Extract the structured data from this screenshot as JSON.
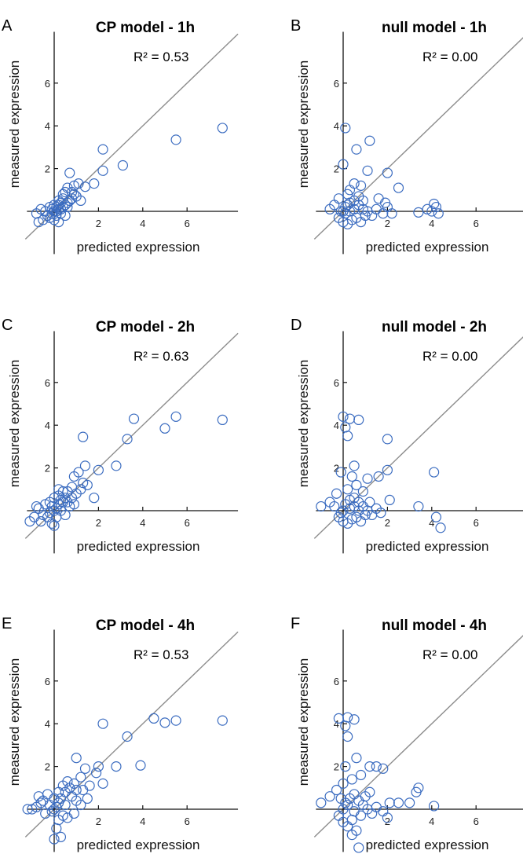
{
  "axis_labels": {
    "x": "predicted expression",
    "y": "measured expression"
  },
  "chart_data": [
    {
      "panel": "A",
      "type": "scatter",
      "title": "CP model - 1h",
      "annotation": "R² = 0.53",
      "xlabel": "predicted expression",
      "ylabel": "measured expression",
      "xticks": [
        2,
        4,
        6
      ],
      "yticks": [
        2,
        4,
        6
      ],
      "xlim": [
        -1.3,
        8.3
      ],
      "ylim": [
        -2.0,
        8.4
      ],
      "diagonal": true,
      "points": [
        [
          7.6,
          3.9
        ],
        [
          5.5,
          3.35
        ],
        [
          3.1,
          2.15
        ],
        [
          2.2,
          2.9
        ],
        [
          2.2,
          1.9
        ],
        [
          1.8,
          1.3
        ],
        [
          1.4,
          1.15
        ],
        [
          1.2,
          0.5
        ],
        [
          1.1,
          1.3
        ],
        [
          0.7,
          1.8
        ],
        [
          0.9,
          0.8
        ],
        [
          0.8,
          0.6
        ],
        [
          0.6,
          1.1
        ],
        [
          0.5,
          0.9
        ],
        [
          0.4,
          0.6
        ],
        [
          0.3,
          0.4
        ],
        [
          0.2,
          0.3
        ],
        [
          0.1,
          0.2
        ],
        [
          0.0,
          0.0
        ],
        [
          -0.1,
          0.1
        ],
        [
          -0.3,
          -0.2
        ],
        [
          -0.5,
          -0.4
        ],
        [
          -0.7,
          -0.5
        ],
        [
          -0.2,
          -0.3
        ],
        [
          0.1,
          -0.2
        ],
        [
          0.3,
          0.1
        ],
        [
          0.5,
          0.3
        ],
        [
          0.6,
          0.2
        ],
        [
          0.7,
          0.5
        ],
        [
          0.4,
          0.8
        ],
        [
          0.2,
          0.5
        ],
        [
          0.0,
          0.3
        ],
        [
          -0.1,
          -0.1
        ],
        [
          0.2,
          0.1
        ],
        [
          0.3,
          -0.1
        ],
        [
          0.8,
          0.9
        ],
        [
          1.0,
          0.7
        ],
        [
          0.9,
          1.2
        ],
        [
          0.6,
          0.4
        ],
        [
          0.4,
          0.2
        ],
        [
          0.1,
          0.0
        ],
        [
          -0.4,
          0.0
        ],
        [
          -0.8,
          -0.1
        ],
        [
          -0.6,
          0.1
        ],
        [
          -0.2,
          0.2
        ],
        [
          0.0,
          -0.4
        ],
        [
          0.2,
          -0.5
        ],
        [
          0.5,
          -0.2
        ]
      ]
    },
    {
      "panel": "B",
      "type": "scatter",
      "title": "null model - 1h",
      "annotation": "R² = 0.00",
      "xlabel": "predicted expression",
      "ylabel": "measured expression",
      "xticks": [
        2,
        4,
        6
      ],
      "yticks": [
        2,
        4,
        6
      ],
      "xlim": [
        -1.3,
        8.3
      ],
      "ylim": [
        -2.0,
        8.4
      ],
      "diagonal": true,
      "points": [
        [
          0.1,
          3.9
        ],
        [
          1.2,
          3.3
        ],
        [
          0.6,
          2.9
        ],
        [
          0.0,
          2.2
        ],
        [
          1.1,
          1.9
        ],
        [
          2.0,
          1.8
        ],
        [
          2.5,
          1.1
        ],
        [
          0.5,
          1.3
        ],
        [
          0.3,
          1.0
        ],
        [
          0.8,
          1.2
        ],
        [
          0.2,
          0.8
        ],
        [
          -0.2,
          0.6
        ],
        [
          -0.4,
          0.3
        ],
        [
          -0.6,
          0.1
        ],
        [
          0.0,
          0.0
        ],
        [
          0.1,
          0.2
        ],
        [
          0.3,
          0.4
        ],
        [
          0.5,
          0.5
        ],
        [
          0.7,
          0.3
        ],
        [
          0.9,
          0.1
        ],
        [
          1.1,
          0.0
        ],
        [
          1.3,
          -0.2
        ],
        [
          1.5,
          0.1
        ],
        [
          1.8,
          -0.1
        ],
        [
          2.0,
          0.2
        ],
        [
          2.2,
          -0.1
        ],
        [
          0.4,
          -0.4
        ],
        [
          0.2,
          -0.6
        ],
        [
          0.0,
          -0.5
        ],
        [
          -0.2,
          -0.3
        ],
        [
          0.6,
          -0.3
        ],
        [
          0.8,
          -0.5
        ],
        [
          1.0,
          -0.2
        ],
        [
          0.3,
          0.0
        ],
        [
          0.5,
          0.1
        ],
        [
          0.7,
          0.7
        ],
        [
          0.9,
          0.5
        ],
        [
          0.1,
          -0.1
        ],
        [
          -0.1,
          0.0
        ],
        [
          0.2,
          0.3
        ],
        [
          3.8,
          0.1
        ],
        [
          4.1,
          0.35
        ],
        [
          4.2,
          0.2
        ],
        [
          4.3,
          -0.1
        ],
        [
          3.4,
          -0.05
        ],
        [
          4.0,
          0.0
        ],
        [
          1.6,
          0.6
        ],
        [
          1.9,
          0.4
        ]
      ]
    },
    {
      "panel": "C",
      "type": "scatter",
      "title": "CP model - 2h",
      "annotation": "R² = 0.63",
      "xlabel": "predicted expression",
      "ylabel": "measured expression",
      "xticks": [
        2,
        4,
        6
      ],
      "yticks": [
        2,
        4,
        6
      ],
      "xlim": [
        -1.3,
        8.3
      ],
      "ylim": [
        -2.0,
        8.4
      ],
      "diagonal": true,
      "points": [
        [
          7.6,
          4.25
        ],
        [
          5.5,
          4.4
        ],
        [
          5.0,
          3.85
        ],
        [
          3.6,
          4.3
        ],
        [
          3.3,
          3.35
        ],
        [
          2.8,
          2.1
        ],
        [
          2.0,
          1.9
        ],
        [
          1.3,
          3.45
        ],
        [
          1.4,
          2.1
        ],
        [
          1.1,
          1.8
        ],
        [
          0.9,
          1.6
        ],
        [
          1.8,
          0.6
        ],
        [
          1.5,
          1.2
        ],
        [
          1.2,
          1.0
        ],
        [
          0.8,
          1.1
        ],
        [
          0.6,
          0.9
        ],
        [
          0.5,
          0.6
        ],
        [
          0.4,
          0.4
        ],
        [
          0.3,
          0.5
        ],
        [
          0.2,
          0.3
        ],
        [
          0.1,
          0.1
        ],
        [
          0.0,
          0.0
        ],
        [
          -0.1,
          0.2
        ],
        [
          -0.2,
          -0.1
        ],
        [
          -0.3,
          -0.3
        ],
        [
          -0.5,
          -0.2
        ],
        [
          -0.7,
          0.1
        ],
        [
          -0.9,
          -0.3
        ],
        [
          -1.1,
          -0.5
        ],
        [
          -0.4,
          0.3
        ],
        [
          -0.2,
          0.4
        ],
        [
          0.0,
          0.6
        ],
        [
          0.2,
          0.7
        ],
        [
          0.4,
          0.9
        ],
        [
          0.6,
          0.4
        ],
        [
          0.8,
          0.6
        ],
        [
          1.0,
          0.8
        ],
        [
          0.3,
          0.0
        ],
        [
          0.1,
          -0.3
        ],
        [
          -0.1,
          -0.6
        ],
        [
          0.0,
          -0.7
        ],
        [
          0.5,
          -0.2
        ],
        [
          0.7,
          0.2
        ],
        [
          0.9,
          0.3
        ],
        [
          1.3,
          1.3
        ],
        [
          0.2,
          1.0
        ],
        [
          -0.6,
          -0.5
        ],
        [
          -0.8,
          0.2
        ]
      ]
    },
    {
      "panel": "D",
      "type": "scatter",
      "title": "null model - 2h",
      "annotation": "R² = 0.00",
      "xlabel": "predicted expression",
      "ylabel": "measured expression",
      "xticks": [
        2,
        4,
        6
      ],
      "yticks": [
        2,
        4,
        6
      ],
      "xlim": [
        -1.3,
        8.3
      ],
      "ylim": [
        -2.0,
        8.4
      ],
      "diagonal": true,
      "points": [
        [
          0.0,
          4.4
        ],
        [
          0.3,
          4.3
        ],
        [
          0.7,
          4.25
        ],
        [
          0.1,
          3.9
        ],
        [
          0.2,
          3.5
        ],
        [
          2.0,
          3.35
        ],
        [
          0.5,
          2.1
        ],
        [
          -0.1,
          1.8
        ],
        [
          0.4,
          1.6
        ],
        [
          1.1,
          1.5
        ],
        [
          1.6,
          1.6
        ],
        [
          2.0,
          1.9
        ],
        [
          0.6,
          1.2
        ],
        [
          0.2,
          1.0
        ],
        [
          -0.3,
          0.8
        ],
        [
          -0.6,
          0.4
        ],
        [
          -1.0,
          0.2
        ],
        [
          0.0,
          0.0
        ],
        [
          0.1,
          0.3
        ],
        [
          0.3,
          0.5
        ],
        [
          0.5,
          0.6
        ],
        [
          0.7,
          0.4
        ],
        [
          0.9,
          0.2
        ],
        [
          1.1,
          0.0
        ],
        [
          1.3,
          -0.2
        ],
        [
          1.5,
          0.1
        ],
        [
          1.7,
          -0.1
        ],
        [
          0.4,
          -0.4
        ],
        [
          0.2,
          -0.6
        ],
        [
          0.0,
          -0.5
        ],
        [
          -0.2,
          -0.3
        ],
        [
          0.6,
          -0.3
        ],
        [
          0.8,
          -0.5
        ],
        [
          1.0,
          -0.2
        ],
        [
          3.4,
          0.2
        ],
        [
          4.2,
          -0.3
        ],
        [
          4.4,
          -0.8
        ],
        [
          4.1,
          1.8
        ],
        [
          2.1,
          0.5
        ],
        [
          0.9,
          0.9
        ],
        [
          -0.4,
          0.2
        ],
        [
          0.3,
          0.1
        ],
        [
          0.7,
          0.0
        ],
        [
          1.2,
          0.4
        ],
        [
          -0.1,
          -0.1
        ],
        [
          0.5,
          0.2
        ]
      ]
    },
    {
      "panel": "E",
      "type": "scatter",
      "title": "CP model - 4h",
      "annotation": "R² = 0.53",
      "xlabel": "predicted expression",
      "ylabel": "measured expression",
      "xticks": [
        2,
        4,
        6
      ],
      "yticks": [
        2,
        4,
        6
      ],
      "xlim": [
        -1.3,
        8.3
      ],
      "ylim": [
        -2.0,
        8.4
      ],
      "diagonal": true,
      "points": [
        [
          7.6,
          4.15
        ],
        [
          5.5,
          4.15
        ],
        [
          5.0,
          4.05
        ],
        [
          4.5,
          4.25
        ],
        [
          3.3,
          3.4
        ],
        [
          3.9,
          2.05
        ],
        [
          2.2,
          4.0
        ],
        [
          2.8,
          2.0
        ],
        [
          2.0,
          2.0
        ],
        [
          1.9,
          1.7
        ],
        [
          1.4,
          1.9
        ],
        [
          1.0,
          2.4
        ],
        [
          1.2,
          1.5
        ],
        [
          0.9,
          1.2
        ],
        [
          0.7,
          1.0
        ],
        [
          0.5,
          0.8
        ],
        [
          0.3,
          0.5
        ],
        [
          0.2,
          0.3
        ],
        [
          0.1,
          0.1
        ],
        [
          0.0,
          0.0
        ],
        [
          -0.1,
          -0.1
        ],
        [
          -0.2,
          0.2
        ],
        [
          -0.4,
          -0.2
        ],
        [
          -0.6,
          0.3
        ],
        [
          -0.8,
          0.1
        ],
        [
          -1.0,
          0.0
        ],
        [
          -1.2,
          0.0
        ],
        [
          -0.7,
          0.6
        ],
        [
          -0.5,
          0.4
        ],
        [
          -0.3,
          0.7
        ],
        [
          0.0,
          0.5
        ],
        [
          0.2,
          0.8
        ],
        [
          0.4,
          1.1
        ],
        [
          0.6,
          1.3
        ],
        [
          0.8,
          0.6
        ],
        [
          1.0,
          0.4
        ],
        [
          1.3,
          0.9
        ],
        [
          1.6,
          1.1
        ],
        [
          0.4,
          -0.3
        ],
        [
          0.2,
          -0.5
        ],
        [
          0.1,
          -0.9
        ],
        [
          0.0,
          -1.4
        ],
        [
          0.3,
          -1.3
        ],
        [
          0.6,
          -0.4
        ],
        [
          0.9,
          -0.2
        ],
        [
          1.2,
          0.2
        ],
        [
          1.5,
          0.5
        ],
        [
          2.2,
          1.2
        ],
        [
          1.0,
          0.9
        ],
        [
          0.5,
          0.2
        ]
      ]
    },
    {
      "panel": "F",
      "type": "scatter",
      "title": "null model - 4h",
      "annotation": "R² = 0.00",
      "xlabel": "predicted expression",
      "ylabel": "measured expression",
      "xticks": [
        2,
        4,
        6
      ],
      "yticks": [
        2,
        4,
        6
      ],
      "xlim": [
        -1.3,
        8.3
      ],
      "ylim": [
        -2.0,
        8.4
      ],
      "diagonal": true,
      "points": [
        [
          -0.2,
          4.25
        ],
        [
          0.2,
          4.3
        ],
        [
          0.5,
          4.2
        ],
        [
          0.1,
          3.9
        ],
        [
          0.2,
          3.4
        ],
        [
          0.6,
          2.4
        ],
        [
          0.1,
          2.0
        ],
        [
          1.5,
          2.0
        ],
        [
          1.8,
          1.9
        ],
        [
          1.2,
          2.0
        ],
        [
          0.8,
          1.6
        ],
        [
          0.4,
          1.4
        ],
        [
          0.0,
          1.2
        ],
        [
          -0.3,
          0.9
        ],
        [
          -0.6,
          0.6
        ],
        [
          -1.0,
          0.3
        ],
        [
          0.0,
          0.0
        ],
        [
          0.1,
          0.3
        ],
        [
          0.3,
          0.5
        ],
        [
          0.5,
          0.7
        ],
        [
          0.7,
          0.4
        ],
        [
          0.9,
          0.2
        ],
        [
          1.1,
          0.0
        ],
        [
          1.3,
          -0.2
        ],
        [
          1.5,
          0.1
        ],
        [
          1.8,
          -0.1
        ],
        [
          2.1,
          0.3
        ],
        [
          2.5,
          0.3
        ],
        [
          3.0,
          0.3
        ],
        [
          3.4,
          1.0
        ],
        [
          3.3,
          0.8
        ],
        [
          4.1,
          0.15
        ],
        [
          2.0,
          -0.4
        ],
        [
          0.4,
          -0.5
        ],
        [
          0.2,
          -0.8
        ],
        [
          0.0,
          -0.6
        ],
        [
          -0.2,
          -0.3
        ],
        [
          0.6,
          -1.0
        ],
        [
          0.7,
          -1.8
        ],
        [
          0.4,
          -1.2
        ],
        [
          0.8,
          -0.3
        ],
        [
          1.0,
          0.6
        ],
        [
          1.2,
          0.8
        ],
        [
          -0.1,
          0.5
        ],
        [
          0.2,
          0.2
        ],
        [
          0.5,
          -0.1
        ]
      ]
    }
  ]
}
